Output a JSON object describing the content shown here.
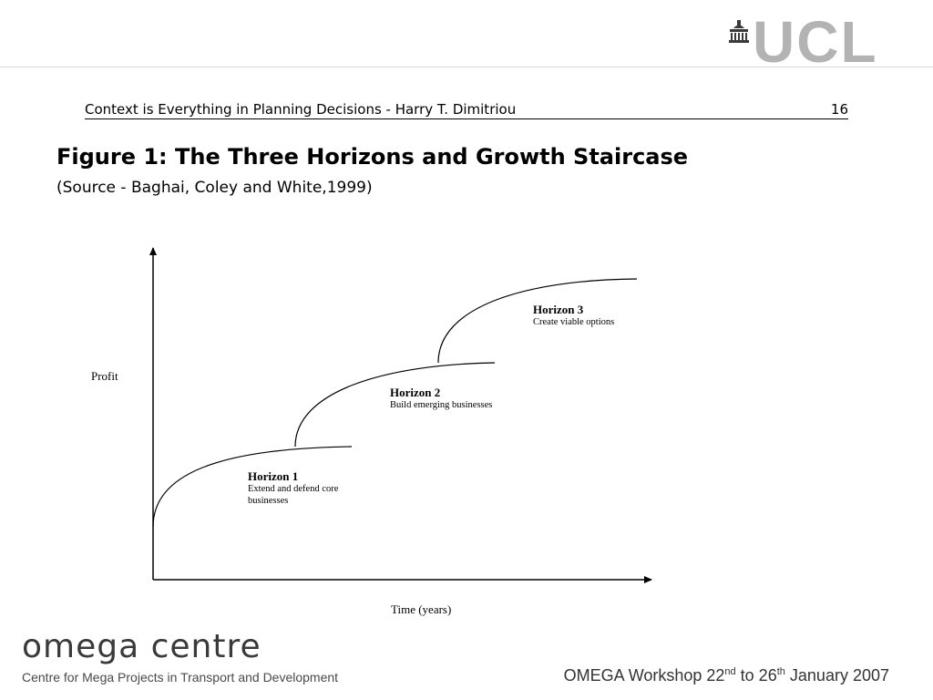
{
  "header": {
    "logo_text": "UCL",
    "running_title": "Context is Everything in Planning Decisions - Harry T. Dimitriou",
    "page_number": "16"
  },
  "figure": {
    "title": "Figure 1: The Three Horizons and Growth Staircase",
    "source": "(Source - Baghai, Coley and White,1999)",
    "y_axis_label": "Profit",
    "x_axis_label": "Time (years)",
    "horizons": [
      {
        "name": "Horizon 1",
        "description": "Extend and defend core businesses"
      },
      {
        "name": "Horizon 2",
        "description": "Build emerging businesses"
      },
      {
        "name": "Horizon 3",
        "description": "Create viable options"
      }
    ]
  },
  "footer": {
    "org_logo_text": "omega centre",
    "org_subtitle": "Centre for Mega Projects in Transport and Development",
    "workshop_prefix": "OMEGA Workshop 22",
    "workshop_sup1": "nd",
    "workshop_mid": " to 26",
    "workshop_sup2": "th",
    "workshop_suffix": " January 2007"
  },
  "colors": {
    "logo_grey": "#b3b3b3",
    "rule_grey": "#d9d9d9"
  },
  "icons": {
    "ucl_building": "portico-dome-icon"
  }
}
